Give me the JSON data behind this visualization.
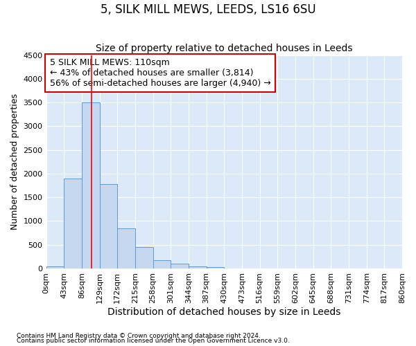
{
  "title": "5, SILK MILL MEWS, LEEDS, LS16 6SU",
  "subtitle": "Size of property relative to detached houses in Leeds",
  "xlabel": "Distribution of detached houses by size in Leeds",
  "ylabel": "Number of detached properties",
  "footnote1": "Contains HM Land Registry data © Crown copyright and database right 2024.",
  "footnote2": "Contains public sector information licensed under the Open Government Licence v3.0.",
  "bin_edges": [
    0,
    43,
    86,
    129,
    172,
    215,
    258,
    301,
    344,
    387,
    430,
    473,
    516,
    559,
    602,
    645,
    688,
    731,
    774,
    817,
    860
  ],
  "bar_heights": [
    50,
    1900,
    3500,
    1775,
    850,
    450,
    175,
    100,
    50,
    25,
    5,
    5,
    0,
    0,
    0,
    0,
    0,
    0,
    0,
    0
  ],
  "bar_color": "#c5d8f0",
  "bar_edge_color": "#5b9bd5",
  "red_line_x": 110,
  "ylim": [
    0,
    4500
  ],
  "yticks": [
    0,
    500,
    1000,
    1500,
    2000,
    2500,
    3000,
    3500,
    4000,
    4500
  ],
  "annotation_title": "5 SILK MILL MEWS: 110sqm",
  "annotation_line1": "← 43% of detached houses are smaller (3,814)",
  "annotation_line2": "56% of semi-detached houses are larger (4,940) →",
  "annotation_box_facecolor": "#ffffff",
  "annotation_box_edgecolor": "#cc0000",
  "fig_background": "#ffffff",
  "plot_background": "#dce9f8",
  "grid_color": "#ffffff",
  "title_fontsize": 12,
  "subtitle_fontsize": 10,
  "ylabel_fontsize": 9,
  "xlabel_fontsize": 10,
  "tick_fontsize": 8,
  "annot_fontsize": 9
}
